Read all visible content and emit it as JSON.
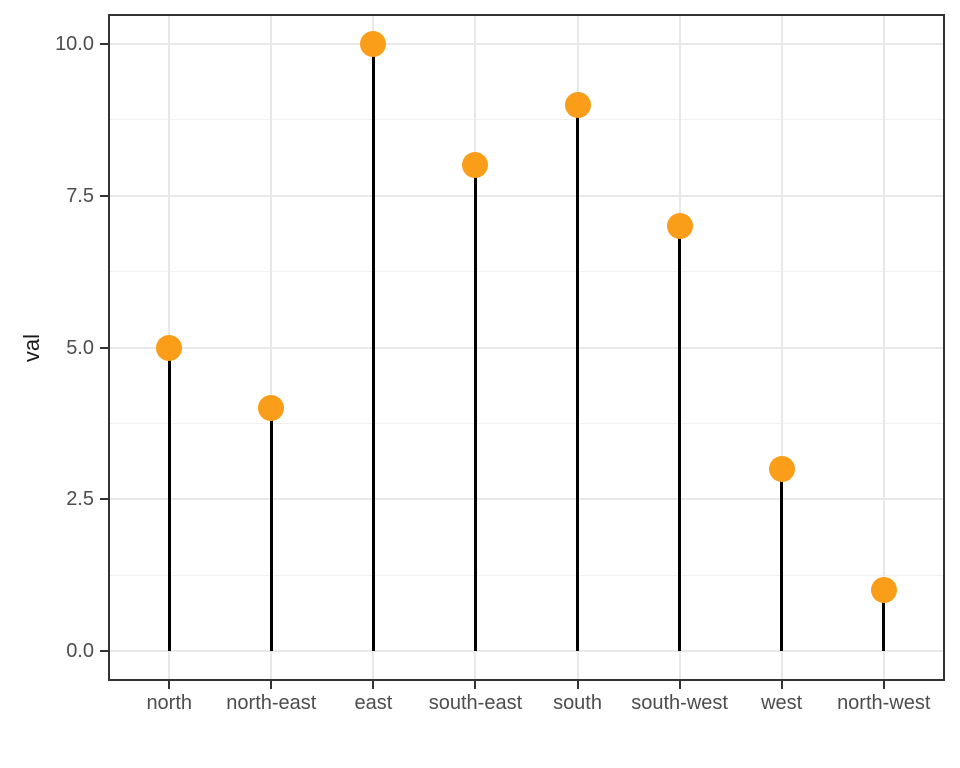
{
  "chart_data": {
    "type": "lollipop",
    "title": "",
    "xlabel": "",
    "ylabel": "val",
    "categories": [
      "north",
      "north-east",
      "east",
      "south-east",
      "south",
      "south-west",
      "west",
      "north-west"
    ],
    "values": [
      5,
      4,
      10,
      8,
      9,
      7,
      3,
      1
    ],
    "ylim": [
      0,
      10
    ],
    "y_major_ticks": [
      0,
      2.5,
      5,
      7.5,
      10
    ],
    "y_tick_labels": [
      "0.0",
      "2.5",
      "5.0",
      "7.5",
      "10.0"
    ],
    "y_minor_ticks": [
      1.25,
      3.75,
      6.25,
      8.75
    ],
    "grid": "horizontal major+minor, vertical major at categories",
    "legend": "none",
    "colors": {
      "point_fill": "#fa9d19",
      "stem": "#000000",
      "grid_major": "#e8e8e8",
      "grid_minor": "#f0f0f0",
      "panel_border": "#333333",
      "axis_text": "#4d4d4d",
      "axis_title": "#1a1a1a",
      "background": "#ffffff"
    }
  }
}
